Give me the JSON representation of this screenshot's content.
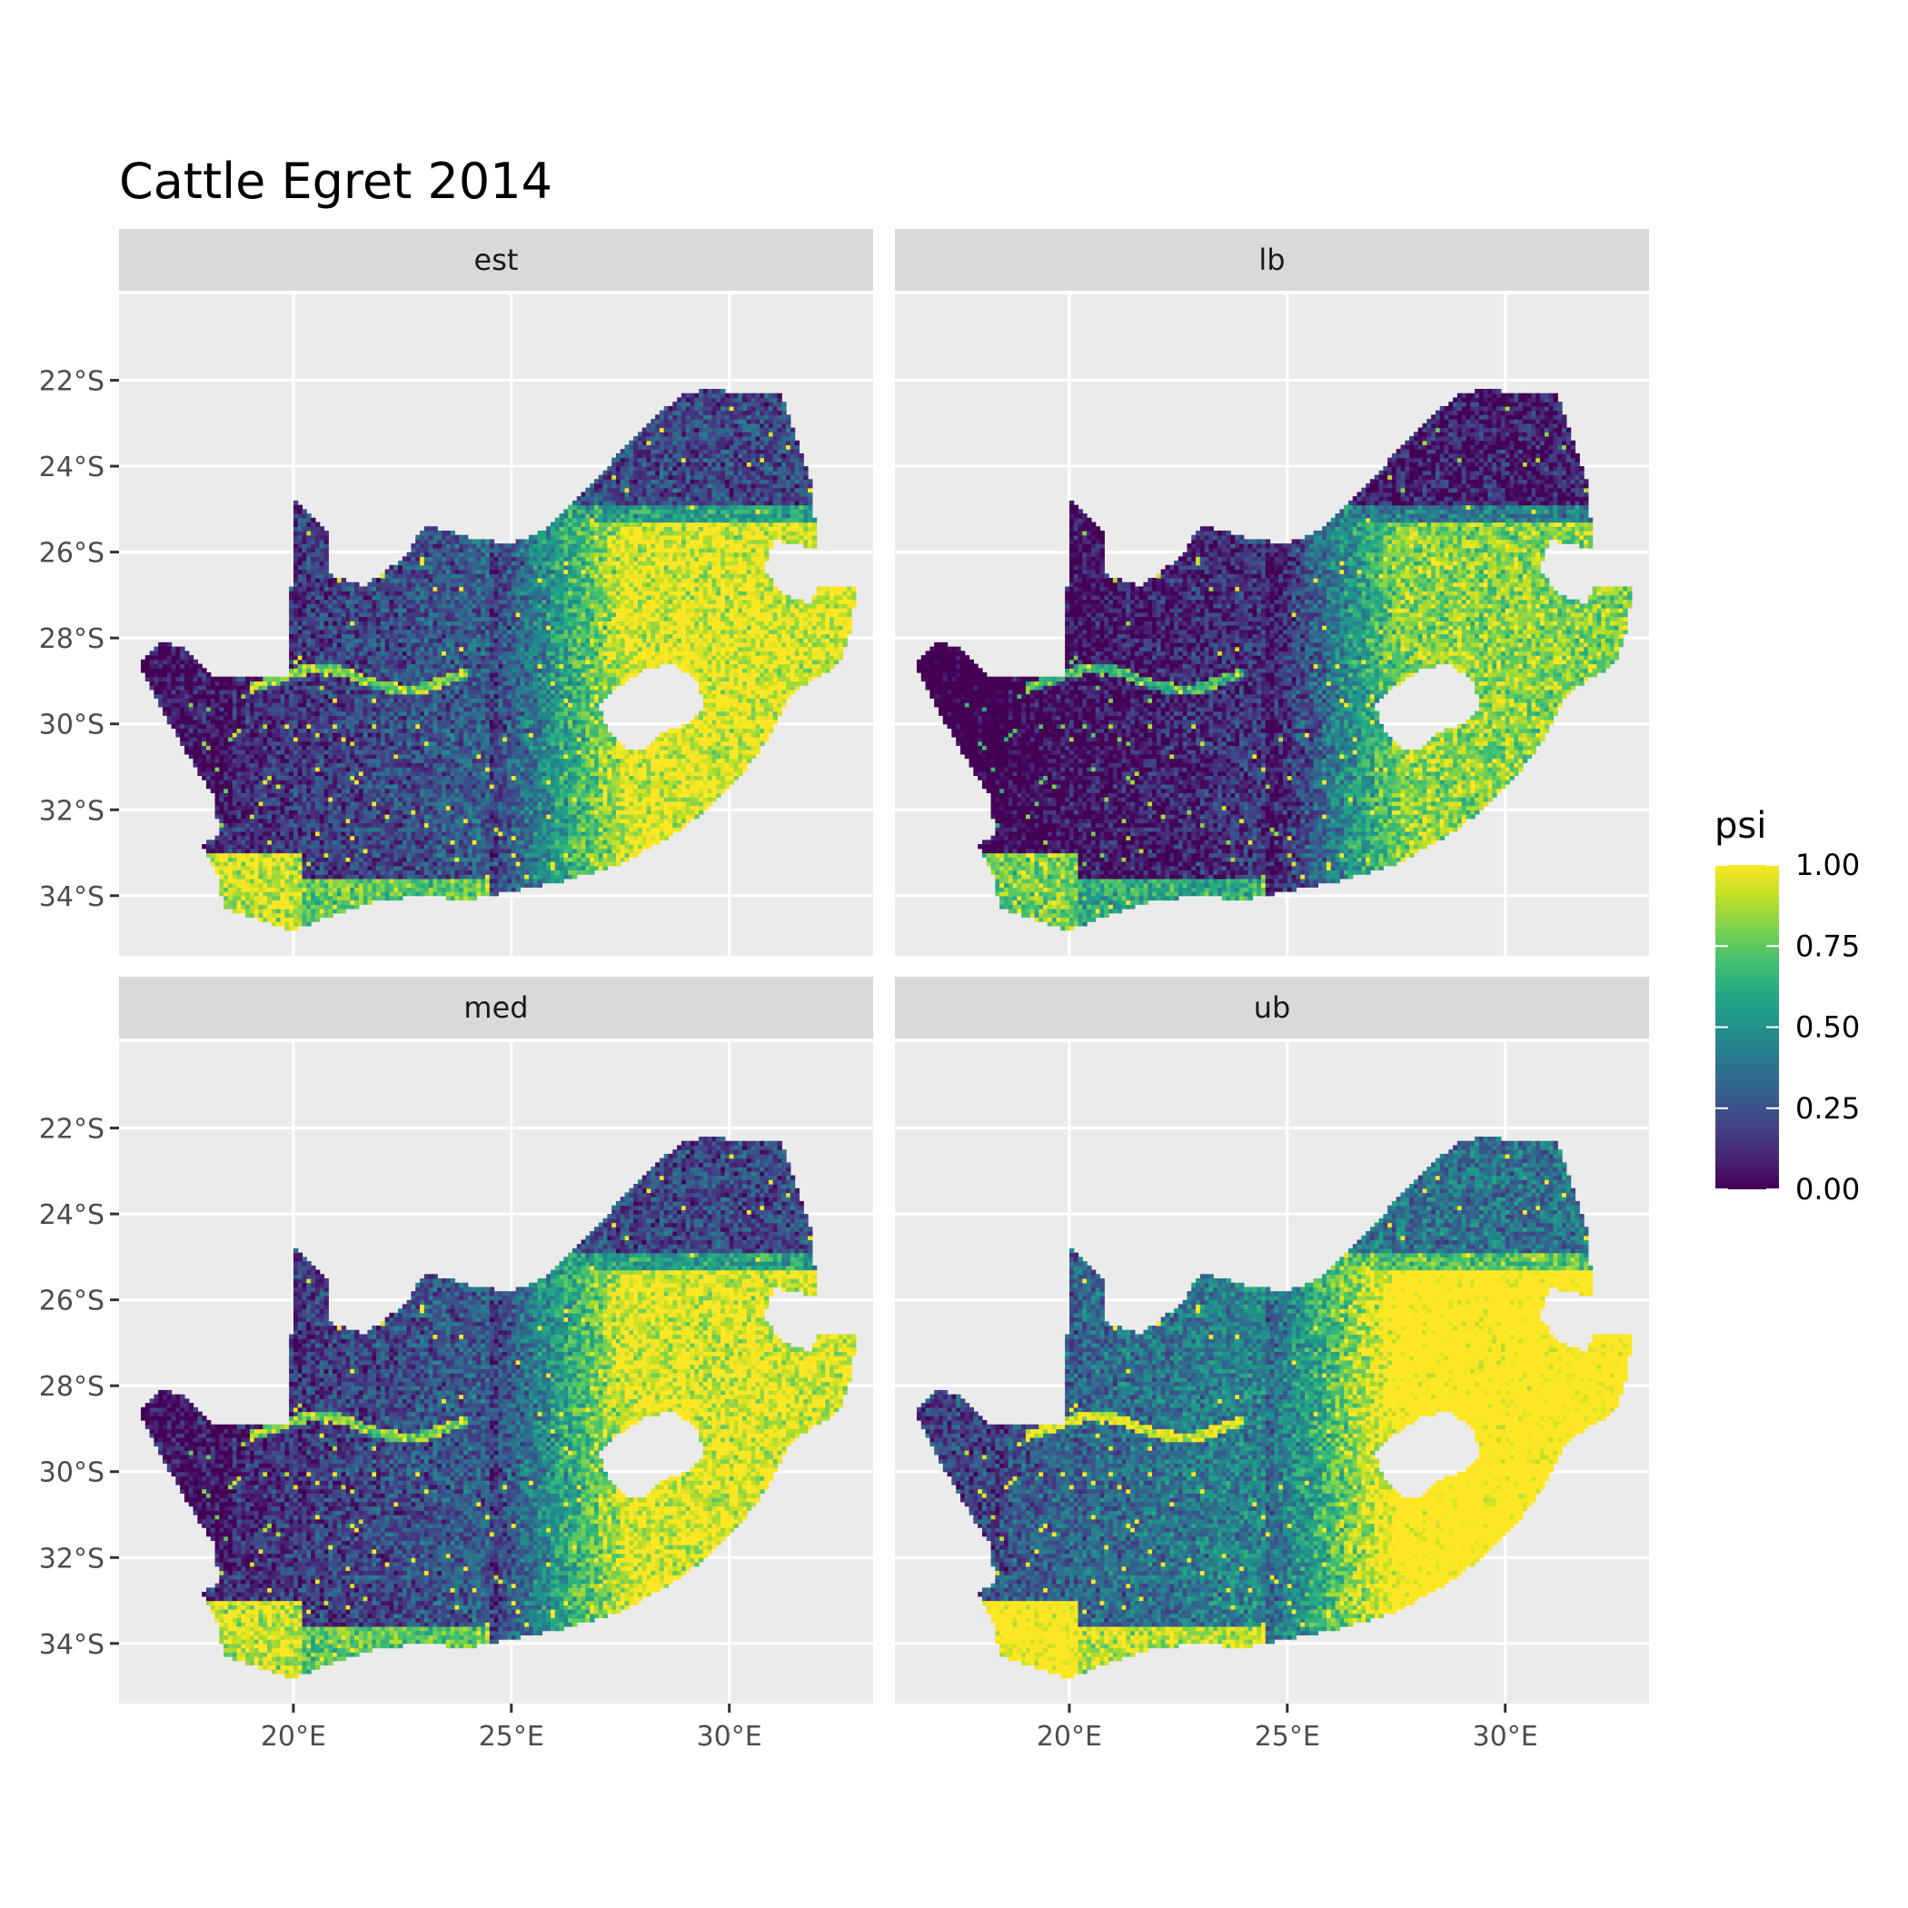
{
  "title": "Cattle Egret 2014",
  "panels": [
    {
      "label": "est",
      "shift": 0.0
    },
    {
      "label": "lb",
      "shift": -0.14
    },
    {
      "label": "med",
      "shift": 0.0
    },
    {
      "label": "ub",
      "shift": 0.16
    }
  ],
  "axes": {
    "lon_range": [
      16.0,
      33.3
    ],
    "lat_range": [
      -35.4,
      -20.0
    ],
    "x_ticks": [
      {
        "value": 20,
        "label": "20°E"
      },
      {
        "value": 25,
        "label": "25°E"
      },
      {
        "value": 30,
        "label": "30°E"
      }
    ],
    "y_ticks": [
      {
        "value": -22,
        "label": "22°S"
      },
      {
        "value": -24,
        "label": "24°S"
      },
      {
        "value": -26,
        "label": "26°S"
      },
      {
        "value": -28,
        "label": "28°S"
      },
      {
        "value": -30,
        "label": "30°S"
      },
      {
        "value": -32,
        "label": "32°S"
      },
      {
        "value": -34,
        "label": "34°S"
      }
    ]
  },
  "map": {
    "country_outline": [
      [
        16.45,
        -28.6
      ],
      [
        17.0,
        -28.1
      ],
      [
        17.5,
        -28.2
      ],
      [
        18.2,
        -28.9
      ],
      [
        19.9,
        -28.9
      ],
      [
        20.0,
        -24.8
      ],
      [
        20.5,
        -25.2
      ],
      [
        20.8,
        -25.5
      ],
      [
        20.8,
        -26.5
      ],
      [
        21.6,
        -26.8
      ],
      [
        22.3,
        -26.3
      ],
      [
        22.7,
        -25.9
      ],
      [
        23.0,
        -25.4
      ],
      [
        23.6,
        -25.5
      ],
      [
        24.2,
        -25.7
      ],
      [
        25.0,
        -25.8
      ],
      [
        25.7,
        -25.5
      ],
      [
        26.5,
        -24.7
      ],
      [
        27.0,
        -24.3
      ],
      [
        27.6,
        -23.5
      ],
      [
        28.3,
        -22.8
      ],
      [
        29.0,
        -22.3
      ],
      [
        29.6,
        -22.2
      ],
      [
        30.3,
        -22.3
      ],
      [
        31.2,
        -22.3
      ],
      [
        31.6,
        -23.5
      ],
      [
        31.9,
        -24.4
      ],
      [
        32.0,
        -25.9
      ],
      [
        31.5,
        -25.8
      ],
      [
        31.0,
        -25.7
      ],
      [
        30.8,
        -26.4
      ],
      [
        31.2,
        -27.0
      ],
      [
        31.9,
        -27.2
      ],
      [
        32.0,
        -26.8
      ],
      [
        32.9,
        -26.8
      ],
      [
        32.8,
        -27.8
      ],
      [
        32.5,
        -28.6
      ],
      [
        31.4,
        -29.3
      ],
      [
        30.9,
        -30.3
      ],
      [
        30.2,
        -31.3
      ],
      [
        29.5,
        -32.0
      ],
      [
        28.5,
        -32.7
      ],
      [
        27.4,
        -33.3
      ],
      [
        26.0,
        -33.7
      ],
      [
        25.0,
        -33.9
      ],
      [
        24.0,
        -34.1
      ],
      [
        23.0,
        -34.0
      ],
      [
        22.0,
        -34.1
      ],
      [
        21.0,
        -34.4
      ],
      [
        20.0,
        -34.8
      ],
      [
        19.3,
        -34.6
      ],
      [
        18.8,
        -34.4
      ],
      [
        18.4,
        -34.3
      ],
      [
        18.3,
        -33.6
      ],
      [
        17.9,
        -32.8
      ],
      [
        18.3,
        -32.6
      ],
      [
        18.2,
        -31.7
      ],
      [
        17.5,
        -30.6
      ],
      [
        16.9,
        -29.5
      ]
    ],
    "lesotho_outline": [
      [
        27.0,
        -29.6
      ],
      [
        27.5,
        -29.1
      ],
      [
        28.1,
        -28.7
      ],
      [
        28.7,
        -28.6
      ],
      [
        29.3,
        -29.0
      ],
      [
        29.4,
        -29.6
      ],
      [
        29.1,
        -30.0
      ],
      [
        28.4,
        -30.2
      ],
      [
        28.1,
        -30.6
      ],
      [
        27.7,
        -30.6
      ],
      [
        27.3,
        -30.3
      ]
    ]
  },
  "legend": {
    "title": "psi",
    "breaks": [
      {
        "value": 1.0,
        "label": "1.00"
      },
      {
        "value": 0.75,
        "label": "0.75"
      },
      {
        "value": 0.5,
        "label": "0.50"
      },
      {
        "value": 0.25,
        "label": "0.25"
      },
      {
        "value": 0.0,
        "label": "0.00"
      }
    ],
    "colors": [
      "#440154",
      "#482576",
      "#414487",
      "#35608d",
      "#2a788e",
      "#21918c",
      "#22a884",
      "#43bf71",
      "#7ad151",
      "#bddf26",
      "#fde725"
    ]
  },
  "colors": {
    "panel_background": "#ebebeb",
    "grid": "#ffffff",
    "strip_background": "#d9d9d9"
  }
}
